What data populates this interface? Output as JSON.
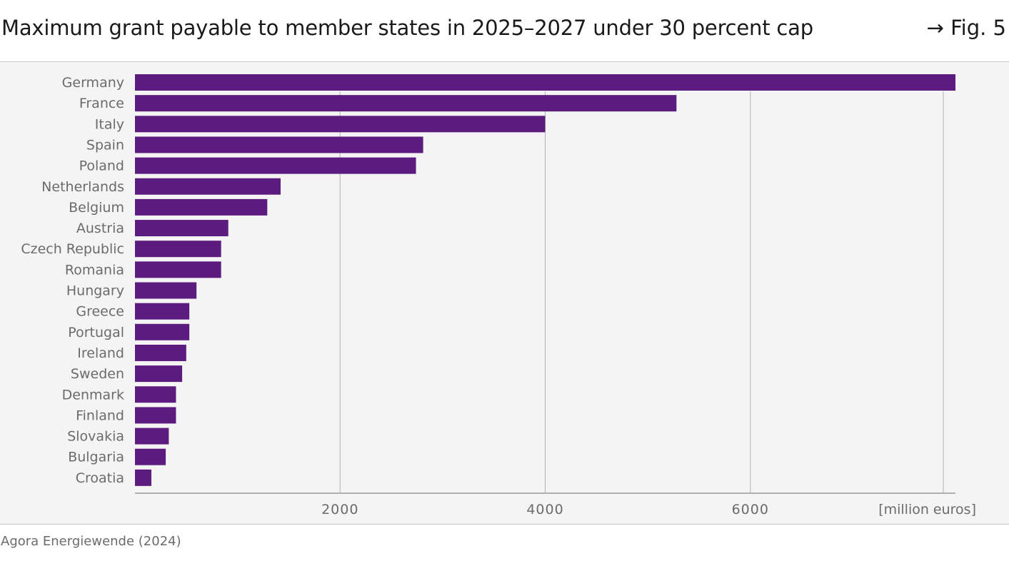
{
  "header": {
    "title": "Maximum grant payable to member states in 2025–2027 under 30 percent cap",
    "figure_ref": "→ Fig. 5"
  },
  "footer": {
    "source": "Agora Energiewende (2024)"
  },
  "colors": {
    "bar": "#5c1b7e",
    "plot_background": "#f4f4f4",
    "gridline": "#b4b4b4",
    "axis": "#9a9a9a",
    "label_text": "#6b6b6b"
  },
  "chart_data": {
    "type": "bar",
    "orientation": "horizontal",
    "title": "Maximum grant payable to member states in 2025–2027 under 30 percent cap",
    "xlabel": "[million euros]",
    "ylabel": "",
    "xlim": [
      0,
      8000
    ],
    "x_ticks": [
      2000,
      4000,
      6000
    ],
    "grid": "vertical",
    "categories": [
      "Germany",
      "France",
      "Italy",
      "Spain",
      "Poland",
      "Netherlands",
      "Belgium",
      "Austria",
      "Czech Republic",
      "Romania",
      "Hungary",
      "Greece",
      "Portugal",
      "Ireland",
      "Sweden",
      "Denmark",
      "Finland",
      "Slovakia",
      "Bulgaria",
      "Croatia"
    ],
    "values": [
      8000,
      5280,
      4000,
      2810,
      2740,
      1420,
      1290,
      910,
      840,
      840,
      600,
      530,
      530,
      500,
      460,
      400,
      400,
      330,
      300,
      160
    ]
  }
}
